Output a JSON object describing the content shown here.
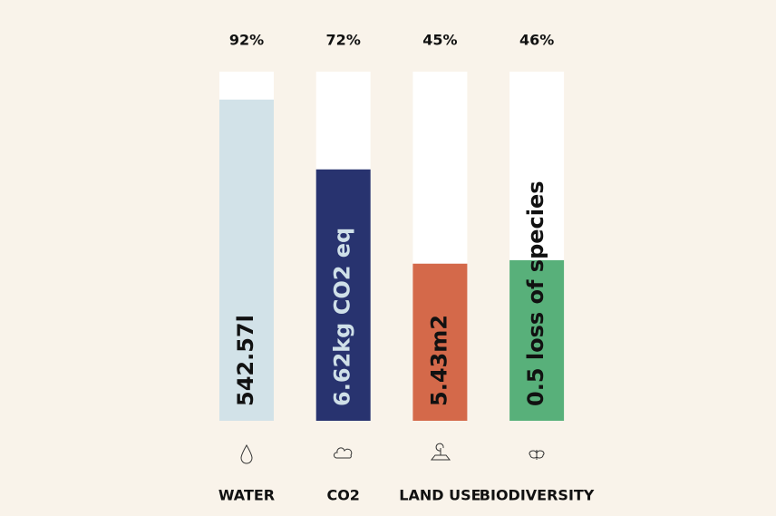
{
  "chart_data": {
    "type": "bar",
    "categories": [
      "WATER",
      "CO2",
      "LAND USE",
      "BIODIVERSITY"
    ],
    "values": [
      92,
      72,
      45,
      46
    ],
    "value_labels": [
      "92%",
      "72%",
      "45%",
      "46%"
    ],
    "inner_labels": [
      "542.57l",
      "6.62kg CO2 eq",
      "5.43m2",
      "0.5 loss of species"
    ],
    "colors": [
      "#d2e2e8",
      "#28336f",
      "#d4694a",
      "#58b07a"
    ],
    "label_colors": [
      "#111111",
      "#cfe0e8",
      "#111111",
      "#111111"
    ],
    "ylim": [
      0,
      100
    ]
  }
}
